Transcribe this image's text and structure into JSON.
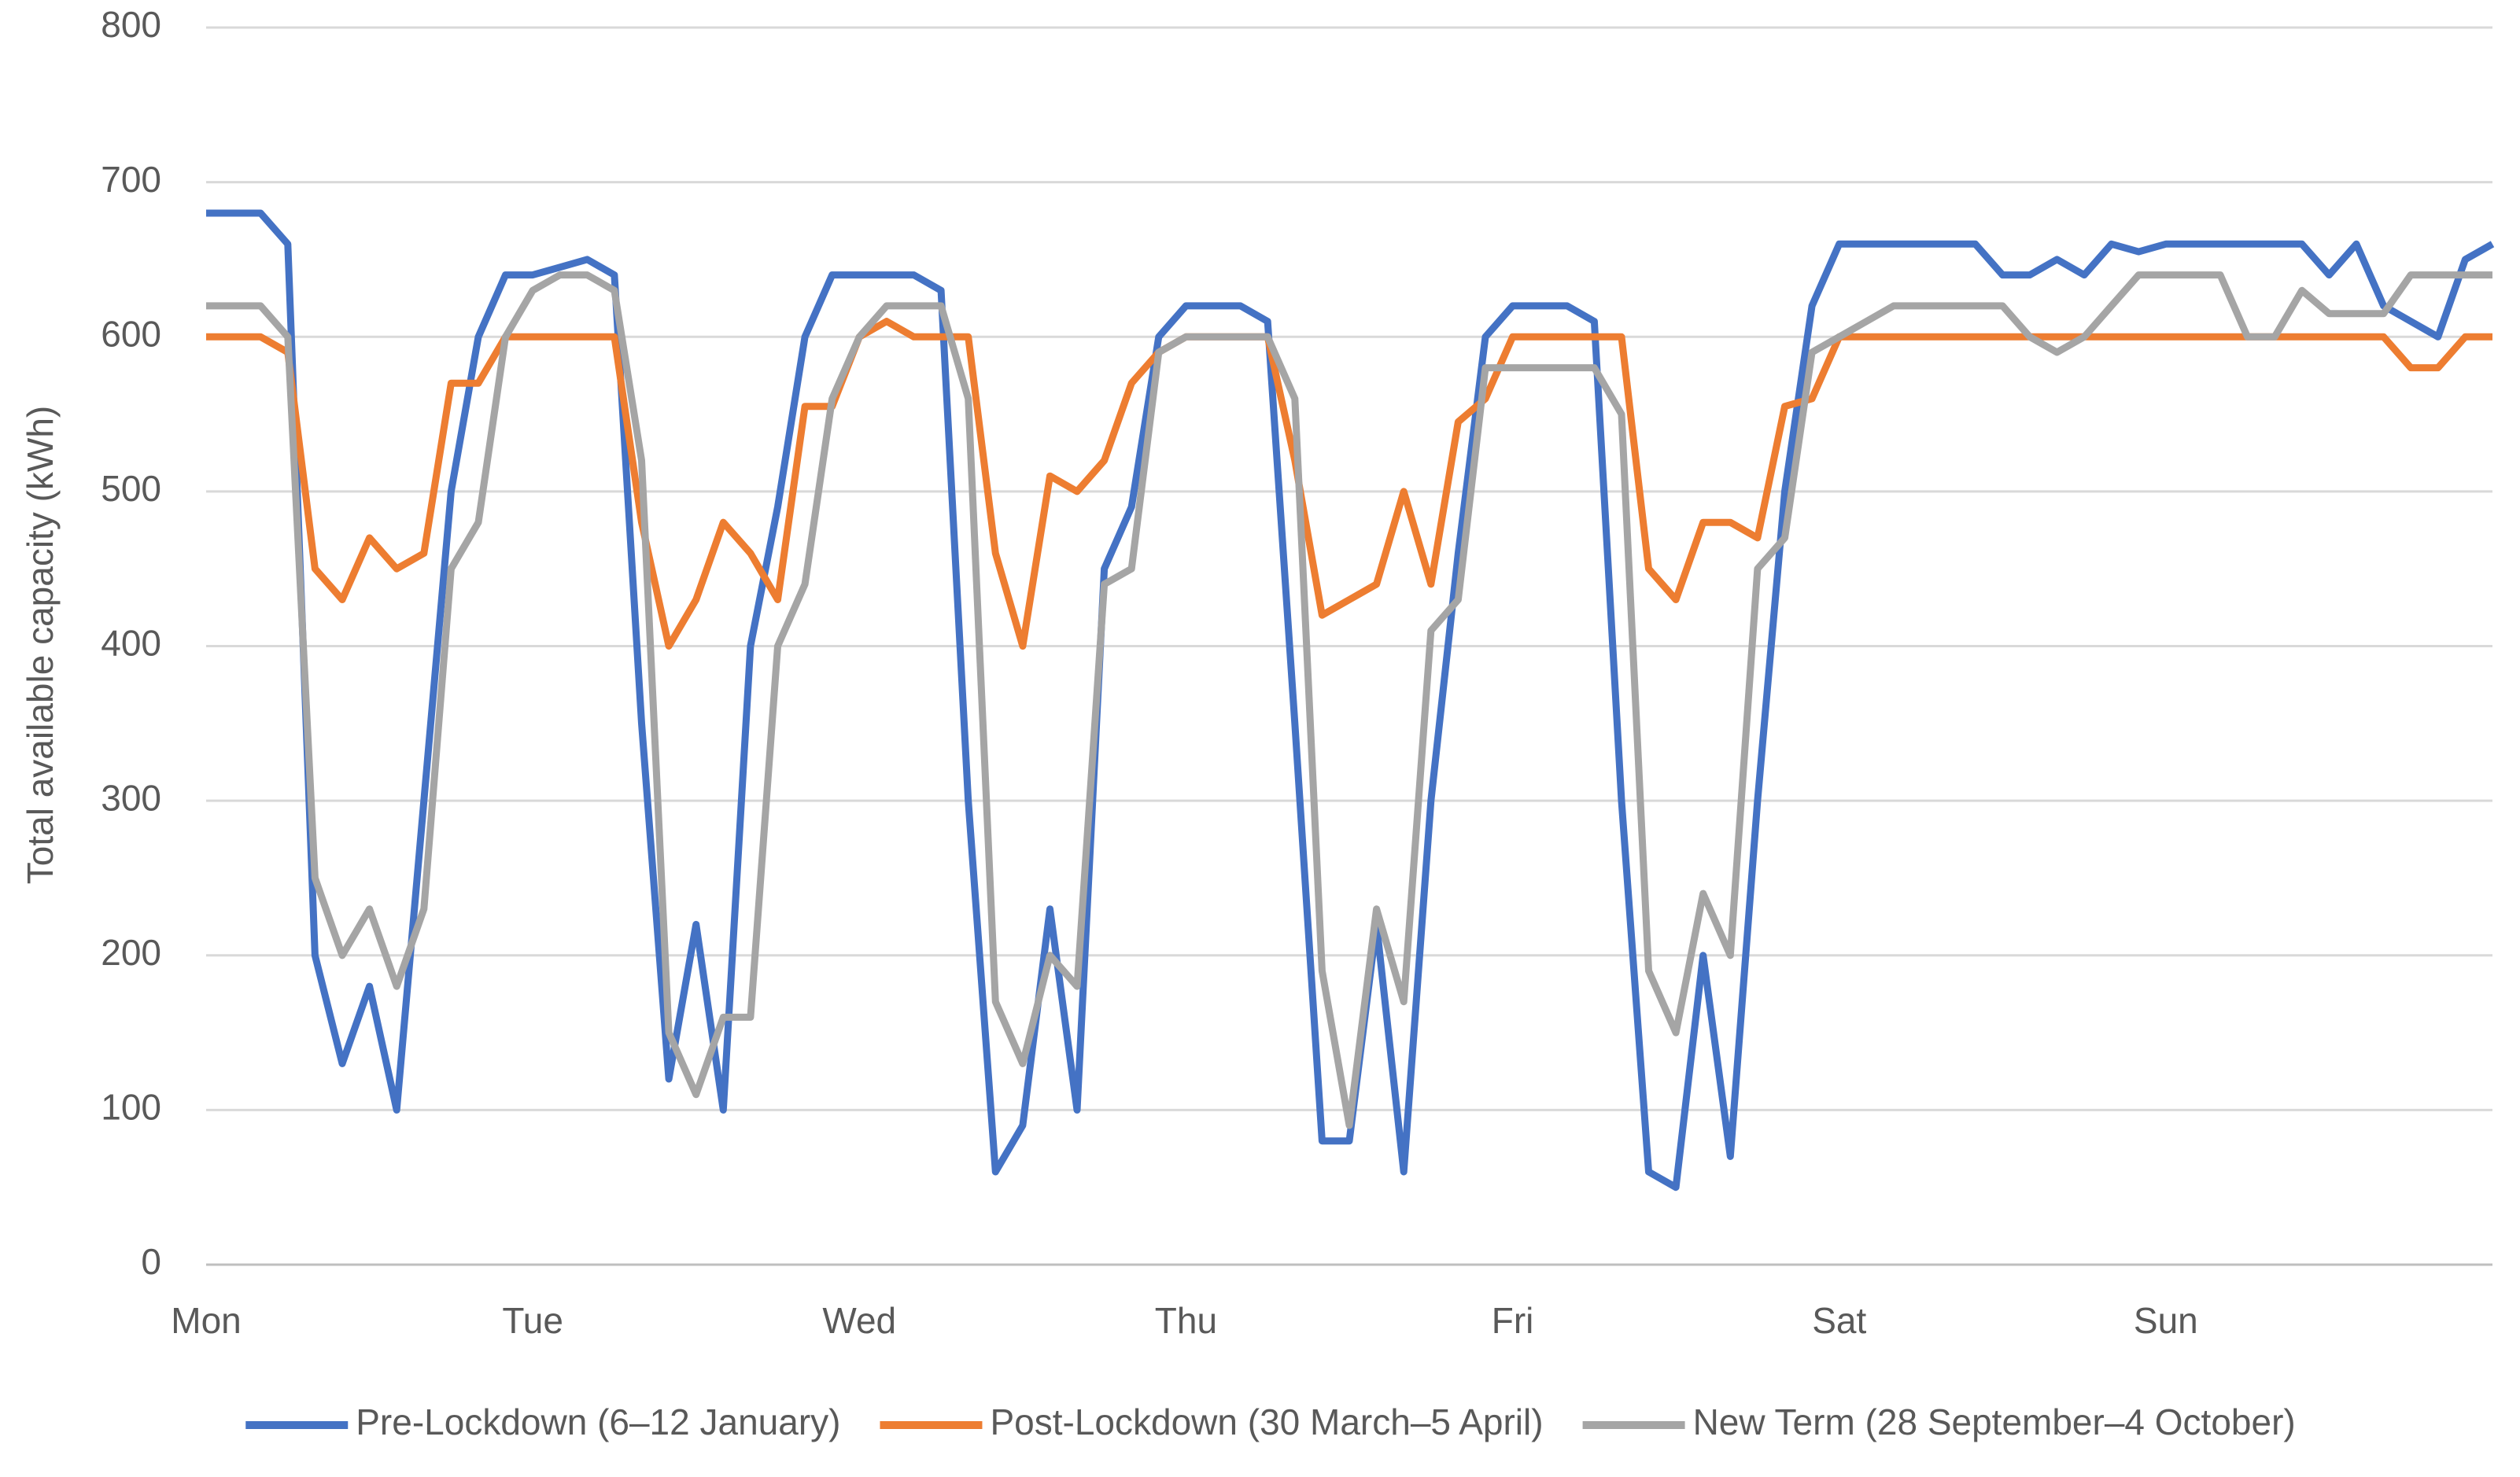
{
  "chart_data": {
    "type": "line",
    "y_label": "Total available capacity (kWh)",
    "x": [
      0,
      2,
      4,
      6,
      8,
      10,
      12,
      14,
      16,
      18,
      20,
      22,
      24,
      26,
      28,
      30,
      32,
      34,
      36,
      38,
      40,
      42,
      44,
      46,
      48,
      50,
      52,
      54,
      56,
      58,
      60,
      62,
      64,
      66,
      68,
      70,
      72,
      74,
      76,
      78,
      80,
      82,
      84,
      86,
      88,
      90,
      92,
      94,
      96,
      98,
      100,
      102,
      104,
      106,
      108,
      110,
      112,
      114,
      116,
      118,
      120,
      122,
      124,
      126,
      128,
      130,
      132,
      134,
      136,
      138,
      140,
      142,
      144,
      146,
      148,
      150,
      152,
      154,
      156,
      158,
      160,
      162,
      164,
      166,
      168
    ],
    "xlim": [
      0,
      168
    ],
    "xticks": [
      {
        "value": 0,
        "label": "Mon"
      },
      {
        "value": 24,
        "label": "Tue"
      },
      {
        "value": 48,
        "label": "Wed"
      },
      {
        "value": 72,
        "label": "Thu"
      },
      {
        "value": 96,
        "label": "Fri"
      },
      {
        "value": 120,
        "label": "Sat"
      },
      {
        "value": 144,
        "label": "Sun"
      }
    ],
    "ylim": [
      0,
      800
    ],
    "yticks": [
      0,
      100,
      200,
      300,
      400,
      500,
      600,
      700,
      800
    ],
    "grid": true,
    "legend": "bottom",
    "series": [
      {
        "name": "Pre-Lockdown (6–12 January)",
        "color": "#4472c4",
        "values": [
          680,
          680,
          680,
          660,
          200,
          130,
          180,
          100,
          300,
          500,
          600,
          640,
          640,
          645,
          650,
          640,
          350,
          120,
          220,
          100,
          400,
          490,
          600,
          640,
          640,
          640,
          640,
          630,
          300,
          60,
          90,
          230,
          100,
          450,
          490,
          600,
          620,
          620,
          620,
          610,
          350,
          80,
          80,
          220,
          60,
          300,
          460,
          600,
          620,
          620,
          620,
          610,
          300,
          60,
          50,
          200,
          70,
          300,
          500,
          620,
          660,
          660,
          660,
          660,
          660,
          660,
          640,
          640,
          650,
          640,
          660,
          655,
          660,
          660,
          660,
          660,
          660,
          660,
          640,
          660,
          620,
          610,
          600,
          650,
          660
        ]
      },
      {
        "name": "Post-Lockdown (30 March–5 April)",
        "color": "#ed7d31",
        "values": [
          600,
          600,
          600,
          590,
          450,
          430,
          470,
          450,
          460,
          570,
          570,
          600,
          600,
          600,
          600,
          600,
          480,
          400,
          430,
          480,
          460,
          430,
          555,
          555,
          600,
          610,
          600,
          600,
          600,
          460,
          400,
          510,
          500,
          520,
          570,
          590,
          600,
          600,
          600,
          600,
          520,
          420,
          430,
          440,
          500,
          440,
          545,
          560,
          600,
          600,
          600,
          600,
          600,
          450,
          430,
          480,
          480,
          470,
          555,
          560,
          600,
          600,
          600,
          600,
          600,
          600,
          600,
          600,
          600,
          600,
          600,
          600,
          600,
          600,
          600,
          600,
          600,
          600,
          600,
          600,
          600,
          580,
          580,
          600,
          600
        ]
      },
      {
        "name": "New Term (28 September–4 October)",
        "color": "#a5a5a5",
        "values": [
          620,
          620,
          620,
          600,
          250,
          200,
          230,
          180,
          230,
          450,
          480,
          600,
          630,
          640,
          640,
          630,
          520,
          150,
          110,
          160,
          160,
          400,
          440,
          560,
          600,
          620,
          620,
          620,
          560,
          170,
          130,
          200,
          180,
          440,
          450,
          590,
          600,
          600,
          600,
          600,
          560,
          190,
          90,
          230,
          170,
          410,
          430,
          580,
          580,
          580,
          580,
          580,
          550,
          190,
          150,
          240,
          200,
          450,
          470,
          590,
          600,
          610,
          620,
          620,
          620,
          620,
          620,
          600,
          590,
          600,
          620,
          640,
          640,
          640,
          640,
          600,
          600,
          630,
          615,
          615,
          615,
          640,
          640,
          640,
          640
        ]
      }
    ]
  }
}
